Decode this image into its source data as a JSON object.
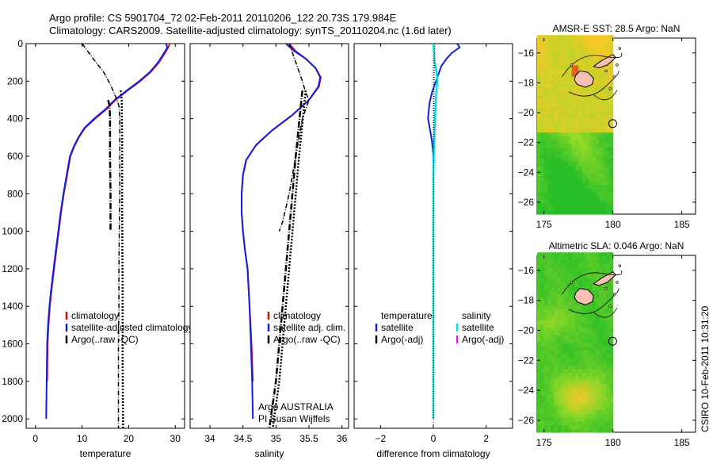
{
  "header": {
    "title_line1": "Argo profile: CS 5901704_72 02-Feb-2011 20110206_122 20.73S 179.984E",
    "title_line2": "Climatology: CARS2009. Satellite-adjusted climatology: synTS_20110204.nc (1.6d later)"
  },
  "side_stamp": "CSIRO 10-Feb-2011 10:31:20",
  "colors": {
    "climatology": "#d01010",
    "satellite": "#1020e0",
    "argo": "#000000",
    "sal_satellite": "#00e0e0",
    "sal_argo": "#e020e0",
    "land": "#f5c0b0"
  },
  "chart_data": [
    {
      "type": "line",
      "xlabel": "temperature",
      "ylabel": "",
      "xlim": [
        -2,
        32
      ],
      "ylim": [
        2050,
        0
      ],
      "xticks": [
        0,
        10,
        20,
        30
      ],
      "yticks": [
        0,
        200,
        400,
        600,
        800,
        1000,
        1200,
        1400,
        1600,
        1800,
        2000
      ],
      "legend": [
        "climatology",
        "satellite-adjusted climatology",
        "Argo(..raw -QC)"
      ],
      "legend_placement": "lower-left",
      "series": [
        {
          "name": "climatology",
          "x": [
            28.8,
            28.5,
            27.8,
            26.5,
            24.8,
            22.5,
            19.8,
            17.2,
            15.2,
            12.8,
            10.6,
            9.3,
            8.3,
            7.5,
            6.8,
            6.1,
            5.5,
            5.0,
            4.5,
            4.0,
            3.5,
            3.1,
            2.8,
            2.6,
            2.5
          ],
          "y": [
            0,
            20,
            50,
            100,
            150,
            200,
            250,
            300,
            350,
            400,
            450,
            500,
            550,
            600,
            700,
            800,
            900,
            1000,
            1100,
            1200,
            1300,
            1400,
            1500,
            1600,
            1800
          ]
        },
        {
          "name": "satellite-adjusted climatology",
          "x": [
            28.0,
            28.3,
            27.6,
            26.3,
            24.6,
            22.3,
            19.6,
            17.0,
            15.0,
            12.6,
            10.5,
            9.2,
            8.2,
            7.4,
            6.7,
            6.0,
            5.4,
            4.9,
            4.4,
            3.9,
            3.4,
            3.0,
            2.7,
            2.5,
            2.4,
            2.3
          ],
          "y": [
            0,
            20,
            50,
            100,
            150,
            200,
            250,
            300,
            350,
            400,
            450,
            500,
            550,
            600,
            700,
            800,
            900,
            1000,
            1100,
            1200,
            1300,
            1400,
            1500,
            1600,
            1800,
            2000
          ]
        },
        {
          "name": "Argo(..raw -QC)",
          "x": [
            10.0,
            11.5,
            13.0,
            14.6,
            16.1,
            17.5,
            17.9,
            18.1,
            18.1,
            18.1,
            18.0,
            17.9,
            17.9,
            17.8,
            17.8,
            17.8
          ],
          "y": [
            0,
            50,
            100,
            150,
            220,
            300,
            330,
            400,
            600,
            800,
            1000,
            1200,
            1400,
            1600,
            1800,
            2050
          ]
        },
        {
          "name": "Argo(..raw -QC)",
          "x": [
            15.6,
            15.9,
            16.0,
            16.0,
            16.1,
            16.1
          ],
          "y": [
            300,
            330,
            400,
            600,
            800,
            1000
          ]
        },
        {
          "name": "Argo(..raw -QC)",
          "x": [
            18.3,
            18.5,
            18.6,
            18.6,
            18.7,
            18.7,
            18.8
          ],
          "y": [
            250,
            300,
            500,
            900,
            1300,
            1700,
            2050
          ]
        }
      ]
    },
    {
      "type": "line",
      "xlabel": "salinity",
      "ylabel": "",
      "xlim": [
        33.7,
        36.1
      ],
      "ylim": [
        2050,
        0
      ],
      "xticks": [
        34,
        34.5,
        35,
        35.5,
        36
      ],
      "legend": [
        "climatology",
        "satellite adj. clim.",
        "Argo(..raw -QC)"
      ],
      "legend_placement": "lower-right",
      "annotation": [
        "Argo AUSTRALIA",
        "PI Susan Wijffels"
      ],
      "series": [
        {
          "name": "climatology",
          "x": [
            35.2,
            35.3,
            35.45,
            35.6,
            35.68,
            35.65,
            35.5,
            35.25,
            34.95,
            34.7,
            34.55,
            34.5,
            34.48,
            34.48,
            34.5,
            34.53,
            34.57,
            34.6,
            34.63,
            34.65
          ],
          "y": [
            0,
            40,
            80,
            130,
            180,
            230,
            300,
            380,
            460,
            540,
            620,
            700,
            800,
            900,
            1000,
            1100,
            1200,
            1400,
            1600,
            1800
          ]
        },
        {
          "name": "satellite adj. clim.",
          "x": [
            35.15,
            35.28,
            35.45,
            35.6,
            35.67,
            35.64,
            35.5,
            35.25,
            34.95,
            34.7,
            34.55,
            34.5,
            34.48,
            34.48,
            34.5,
            34.53,
            34.57,
            34.6,
            34.62,
            34.64,
            34.65
          ],
          "y": [
            0,
            40,
            80,
            130,
            180,
            230,
            300,
            380,
            460,
            540,
            620,
            700,
            800,
            900,
            1000,
            1100,
            1200,
            1400,
            1600,
            1800,
            2000
          ]
        },
        {
          "name": "Argo(..raw -QC)",
          "x": [
            35.2,
            35.28,
            35.4,
            35.45,
            35.5,
            35.4,
            35.3,
            35.2,
            35.1,
            35.05
          ],
          "y": [
            0,
            80,
            200,
            260,
            300,
            400,
            600,
            800,
            950,
            1000
          ]
        },
        {
          "name": "Argo(..raw -QC)",
          "x": [
            35.4,
            35.3,
            35.2,
            35.1,
            35.0,
            34.9
          ],
          "y": [
            250,
            600,
            1000,
            1400,
            1800,
            2050
          ]
        },
        {
          "name": "Argo(..raw -QC)",
          "x": [
            35.45,
            35.35,
            35.25,
            35.15,
            35.05,
            34.95
          ],
          "y": [
            250,
            600,
            1000,
            1400,
            1800,
            2050
          ]
        }
      ]
    },
    {
      "type": "line",
      "xlabel": "difference from climatology",
      "ylabel": "",
      "xlim": [
        -3,
        3
      ],
      "ylim": [
        2050,
        0
      ],
      "xticks": [
        -2,
        0,
        2
      ],
      "legend": [
        "temperature",
        "satellite",
        "Argo(-adj)",
        "salinity",
        "satellite",
        "Argo(-adj)"
      ],
      "legend_placement": "center",
      "series": [
        {
          "name": "satellite",
          "x": [
            0.9,
            1.0,
            0.7,
            0.5,
            0.3,
            0.2,
            0.1,
            -0.05,
            -0.15,
            -0.2,
            -0.1,
            -0.05,
            0.0,
            0.0,
            0.0,
            0.0,
            0.0,
            0.0,
            0.0,
            0.0
          ],
          "y": [
            0,
            20,
            50,
            80,
            120,
            160,
            200,
            260,
            320,
            400,
            480,
            520,
            600,
            800,
            1000,
            1200,
            1400,
            1600,
            1800,
            2000
          ]
        },
        {
          "name": "satellite",
          "x": [
            0.0,
            0.02,
            0.05,
            0.12,
            0.15,
            0.1,
            0.08,
            0.05,
            0.02,
            0.0,
            0.0,
            0.0,
            0.0,
            0.0
          ],
          "y": [
            0,
            50,
            100,
            150,
            200,
            280,
            350,
            450,
            550,
            700,
            1000,
            1400,
            1800,
            2000
          ]
        },
        {
          "name": "Argo(-adj)",
          "x": [
            0.05,
            0.03,
            0.02,
            0.0,
            0.0
          ],
          "y": [
            0,
            200,
            500,
            1000,
            2000
          ]
        }
      ]
    },
    {
      "type": "heatmap",
      "title": "AMSR-E SST: 28.5 Argo: NaN",
      "xlim": [
        174.5,
        186
      ],
      "ylim": [
        -26.8,
        -15
      ],
      "xticks": [
        175,
        180,
        185
      ],
      "yticks": [
        -16,
        -18,
        -20,
        -22,
        -24,
        -26
      ],
      "marker": {
        "x": 179.984,
        "y": -20.73
      }
    },
    {
      "type": "heatmap",
      "title": "Altimetric SLA: 0.046 Argo: NaN",
      "xlim": [
        174.5,
        186
      ],
      "ylim": [
        -26.8,
        -15
      ],
      "xticks": [
        175,
        180,
        185
      ],
      "yticks": [
        -16,
        -18,
        -20,
        -22,
        -24,
        -26
      ],
      "marker": {
        "x": 179.984,
        "y": -20.73
      }
    }
  ]
}
